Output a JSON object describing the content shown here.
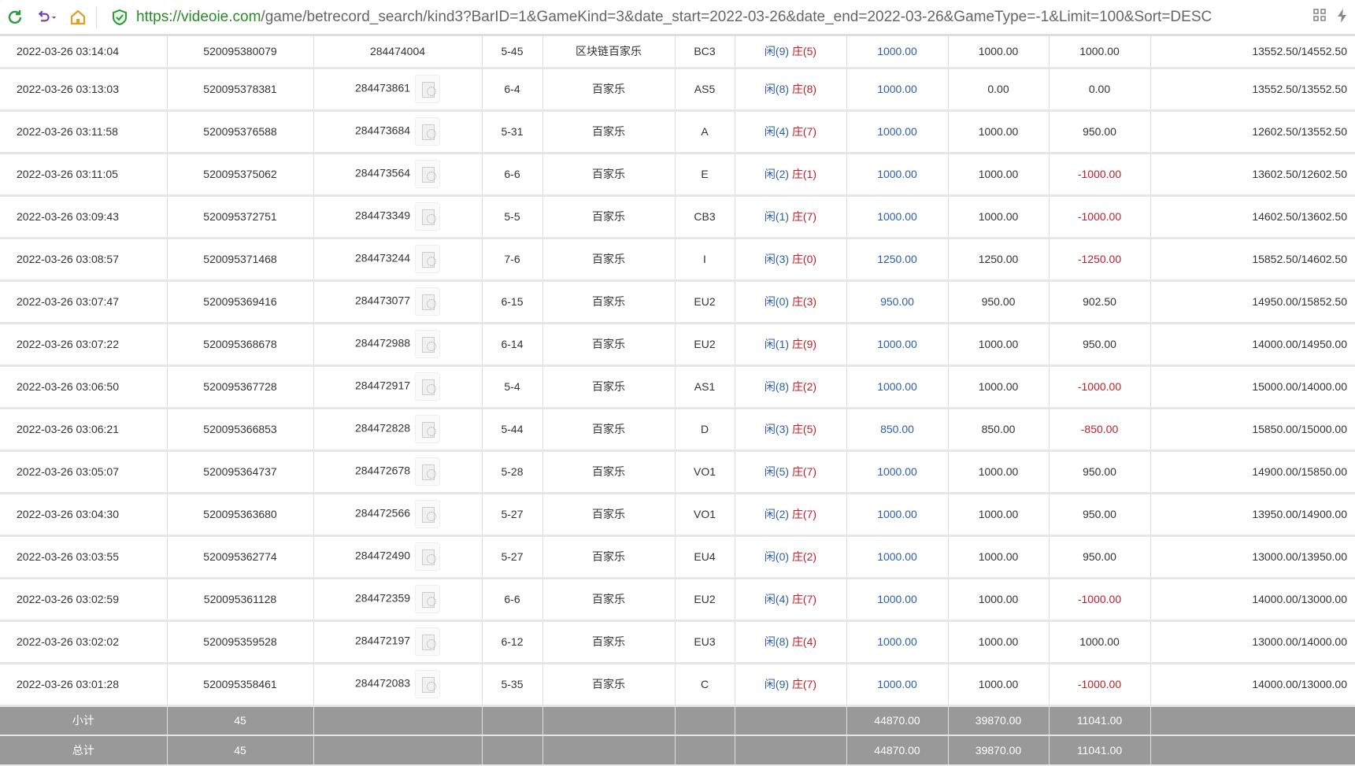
{
  "browser": {
    "url_scheme": "https://",
    "url_domain": "videoie.com",
    "url_path": "/game/betrecord_search/kind3?BarID=1&GameKind=3&date_start=2022-03-26&date_end=2022-03-26&GameType=-1&Limit=100&Sort=DESC",
    "icons": [
      "refresh-icon",
      "undo-icon",
      "home-icon",
      "shield-icon",
      "qr-icon",
      "bolt-icon"
    ]
  },
  "colors": {
    "bet_blue": "#2a5fa8",
    "loss_red": "#c0202a",
    "summary_bg": "#999999"
  },
  "rows": [
    {
      "time": "2022-03-26 03:14:04",
      "bet_id": "520095380079",
      "round": "284474004",
      "thumb": false,
      "shoe": "5-45",
      "game": "区块链百家乐",
      "table": "BC3",
      "xian": "闲(9)",
      "zhuang": "庄(5)",
      "bet": "1000.00",
      "valid": "1000.00",
      "win": "1000.00",
      "balance": "13552.50/14552.50"
    },
    {
      "time": "2022-03-26 03:13:03",
      "bet_id": "520095378381",
      "round": "284473861",
      "thumb": true,
      "shoe": "6-4",
      "game": "百家乐",
      "table": "AS5",
      "xian": "闲(8)",
      "zhuang": "庄(8)",
      "bet": "1000.00",
      "valid": "0.00",
      "win": "0.00",
      "balance": "13552.50/13552.50"
    },
    {
      "time": "2022-03-26 03:11:58",
      "bet_id": "520095376588",
      "round": "284473684",
      "thumb": true,
      "shoe": "5-31",
      "game": "百家乐",
      "table": "A",
      "xian": "闲(4)",
      "zhuang": "庄(7)",
      "bet": "1000.00",
      "valid": "1000.00",
      "win": "950.00",
      "balance": "12602.50/13552.50"
    },
    {
      "time": "2022-03-26 03:11:05",
      "bet_id": "520095375062",
      "round": "284473564",
      "thumb": true,
      "shoe": "6-6",
      "game": "百家乐",
      "table": "E",
      "xian": "闲(2)",
      "zhuang": "庄(1)",
      "bet": "1000.00",
      "valid": "1000.00",
      "win": "-1000.00",
      "balance": "13602.50/12602.50"
    },
    {
      "time": "2022-03-26 03:09:43",
      "bet_id": "520095372751",
      "round": "284473349",
      "thumb": true,
      "shoe": "5-5",
      "game": "百家乐",
      "table": "CB3",
      "xian": "闲(1)",
      "zhuang": "庄(7)",
      "bet": "1000.00",
      "valid": "1000.00",
      "win": "-1000.00",
      "balance": "14602.50/13602.50"
    },
    {
      "time": "2022-03-26 03:08:57",
      "bet_id": "520095371468",
      "round": "284473244",
      "thumb": true,
      "shoe": "7-6",
      "game": "百家乐",
      "table": "I",
      "xian": "闲(3)",
      "zhuang": "庄(0)",
      "bet": "1250.00",
      "valid": "1250.00",
      "win": "-1250.00",
      "balance": "15852.50/14602.50"
    },
    {
      "time": "2022-03-26 03:07:47",
      "bet_id": "520095369416",
      "round": "284473077",
      "thumb": true,
      "shoe": "6-15",
      "game": "百家乐",
      "table": "EU2",
      "xian": "闲(0)",
      "zhuang": "庄(3)",
      "bet": "950.00",
      "valid": "950.00",
      "win": "902.50",
      "balance": "14950.00/15852.50"
    },
    {
      "time": "2022-03-26 03:07:22",
      "bet_id": "520095368678",
      "round": "284472988",
      "thumb": true,
      "shoe": "6-14",
      "game": "百家乐",
      "table": "EU2",
      "xian": "闲(1)",
      "zhuang": "庄(9)",
      "bet": "1000.00",
      "valid": "1000.00",
      "win": "950.00",
      "balance": "14000.00/14950.00"
    },
    {
      "time": "2022-03-26 03:06:50",
      "bet_id": "520095367728",
      "round": "284472917",
      "thumb": true,
      "shoe": "5-4",
      "game": "百家乐",
      "table": "AS1",
      "xian": "闲(8)",
      "zhuang": "庄(2)",
      "bet": "1000.00",
      "valid": "1000.00",
      "win": "-1000.00",
      "balance": "15000.00/14000.00"
    },
    {
      "time": "2022-03-26 03:06:21",
      "bet_id": "520095366853",
      "round": "284472828",
      "thumb": true,
      "shoe": "5-44",
      "game": "百家乐",
      "table": "D",
      "xian": "闲(3)",
      "zhuang": "庄(5)",
      "bet": "850.00",
      "valid": "850.00",
      "win": "-850.00",
      "balance": "15850.00/15000.00"
    },
    {
      "time": "2022-03-26 03:05:07",
      "bet_id": "520095364737",
      "round": "284472678",
      "thumb": true,
      "shoe": "5-28",
      "game": "百家乐",
      "table": "VO1",
      "xian": "闲(5)",
      "zhuang": "庄(7)",
      "bet": "1000.00",
      "valid": "1000.00",
      "win": "950.00",
      "balance": "14900.00/15850.00"
    },
    {
      "time": "2022-03-26 03:04:30",
      "bet_id": "520095363680",
      "round": "284472566",
      "thumb": true,
      "shoe": "5-27",
      "game": "百家乐",
      "table": "VO1",
      "xian": "闲(2)",
      "zhuang": "庄(7)",
      "bet": "1000.00",
      "valid": "1000.00",
      "win": "950.00",
      "balance": "13950.00/14900.00"
    },
    {
      "time": "2022-03-26 03:03:55",
      "bet_id": "520095362774",
      "round": "284472490",
      "thumb": true,
      "shoe": "5-27",
      "game": "百家乐",
      "table": "EU4",
      "xian": "闲(0)",
      "zhuang": "庄(2)",
      "bet": "1000.00",
      "valid": "1000.00",
      "win": "950.00",
      "balance": "13000.00/13950.00"
    },
    {
      "time": "2022-03-26 03:02:59",
      "bet_id": "520095361128",
      "round": "284472359",
      "thumb": true,
      "shoe": "6-6",
      "game": "百家乐",
      "table": "EU2",
      "xian": "闲(4)",
      "zhuang": "庄(7)",
      "bet": "1000.00",
      "valid": "1000.00",
      "win": "-1000.00",
      "balance": "14000.00/13000.00"
    },
    {
      "time": "2022-03-26 03:02:02",
      "bet_id": "520095359528",
      "round": "284472197",
      "thumb": true,
      "shoe": "6-12",
      "game": "百家乐",
      "table": "EU3",
      "xian": "闲(8)",
      "zhuang": "庄(4)",
      "bet": "1000.00",
      "valid": "1000.00",
      "win": "1000.00",
      "balance": "13000.00/14000.00"
    },
    {
      "time": "2022-03-26 03:01:28",
      "bet_id": "520095358461",
      "round": "284472083",
      "thumb": true,
      "shoe": "5-35",
      "game": "百家乐",
      "table": "C",
      "xian": "闲(9)",
      "zhuang": "庄(7)",
      "bet": "1000.00",
      "valid": "1000.00",
      "win": "-1000.00",
      "balance": "14000.00/13000.00"
    }
  ],
  "summary": [
    {
      "label": "小计",
      "count": "45",
      "bet": "44870.00",
      "valid": "39870.00",
      "win": "11041.00"
    },
    {
      "label": "总计",
      "count": "45",
      "bet": "44870.00",
      "valid": "39870.00",
      "win": "11041.00"
    }
  ]
}
